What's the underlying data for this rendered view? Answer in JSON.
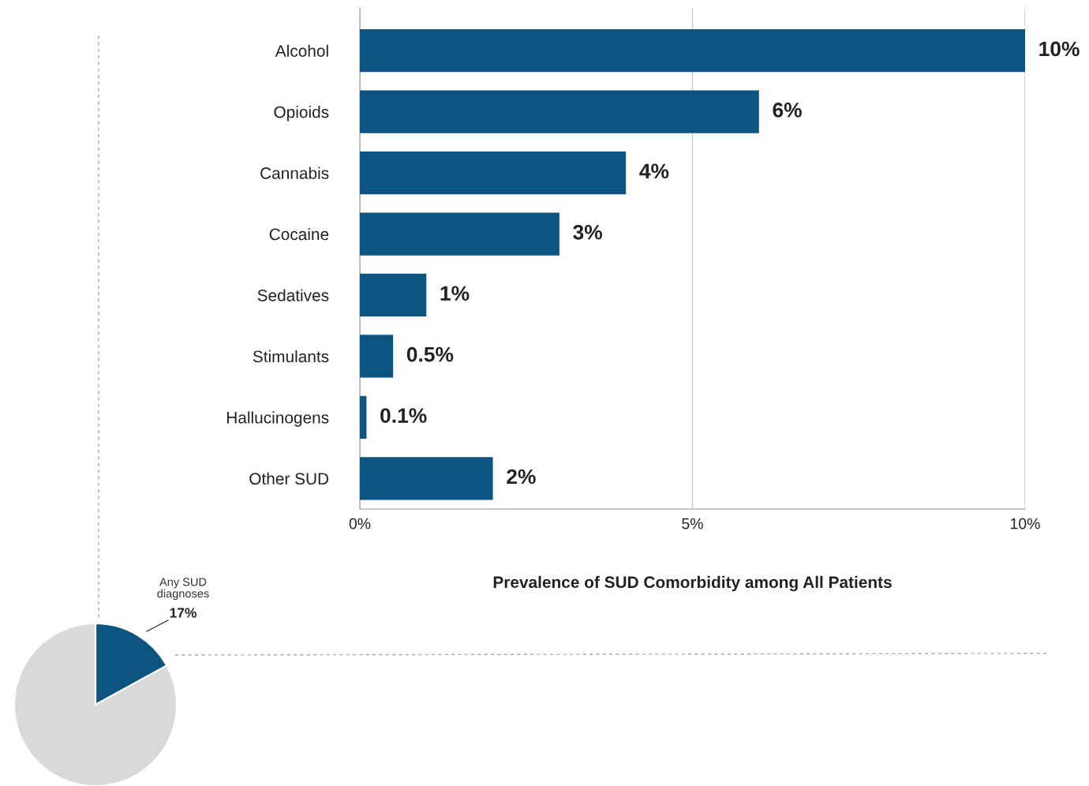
{
  "chart_data": [
    {
      "type": "pie",
      "categories": [
        "Any SUD diagnoses",
        null
      ],
      "values": [
        17,
        83
      ],
      "colors": [
        "#0d5580",
        "#d9d9d9"
      ],
      "value_labels": [
        "17%",
        null
      ]
    },
    {
      "type": "bar",
      "orientation": "horizontal",
      "xlabel": "Prevalence of SUD Comorbidity among All Patients",
      "categories": [
        "Alcohol",
        "Opioids",
        "Cannabis",
        "Cocaine",
        "Sedatives",
        "Stimulants",
        "Hallucinogens",
        "Other SUD"
      ],
      "values": [
        10,
        6,
        4,
        3,
        1,
        0.5,
        0.1,
        2
      ],
      "value_labels": [
        "10%",
        "6%",
        "4%",
        "3%",
        "1%",
        "0.5%",
        "0.1%",
        "2%"
      ],
      "color": "#0d5580",
      "xlim": [
        0,
        10
      ],
      "xticks": [
        {
          "value": 0,
          "label": "0%"
        },
        {
          "value": 5,
          "label": "5%"
        },
        {
          "value": 10,
          "label": "10%"
        }
      ],
      "grid": "x"
    }
  ]
}
